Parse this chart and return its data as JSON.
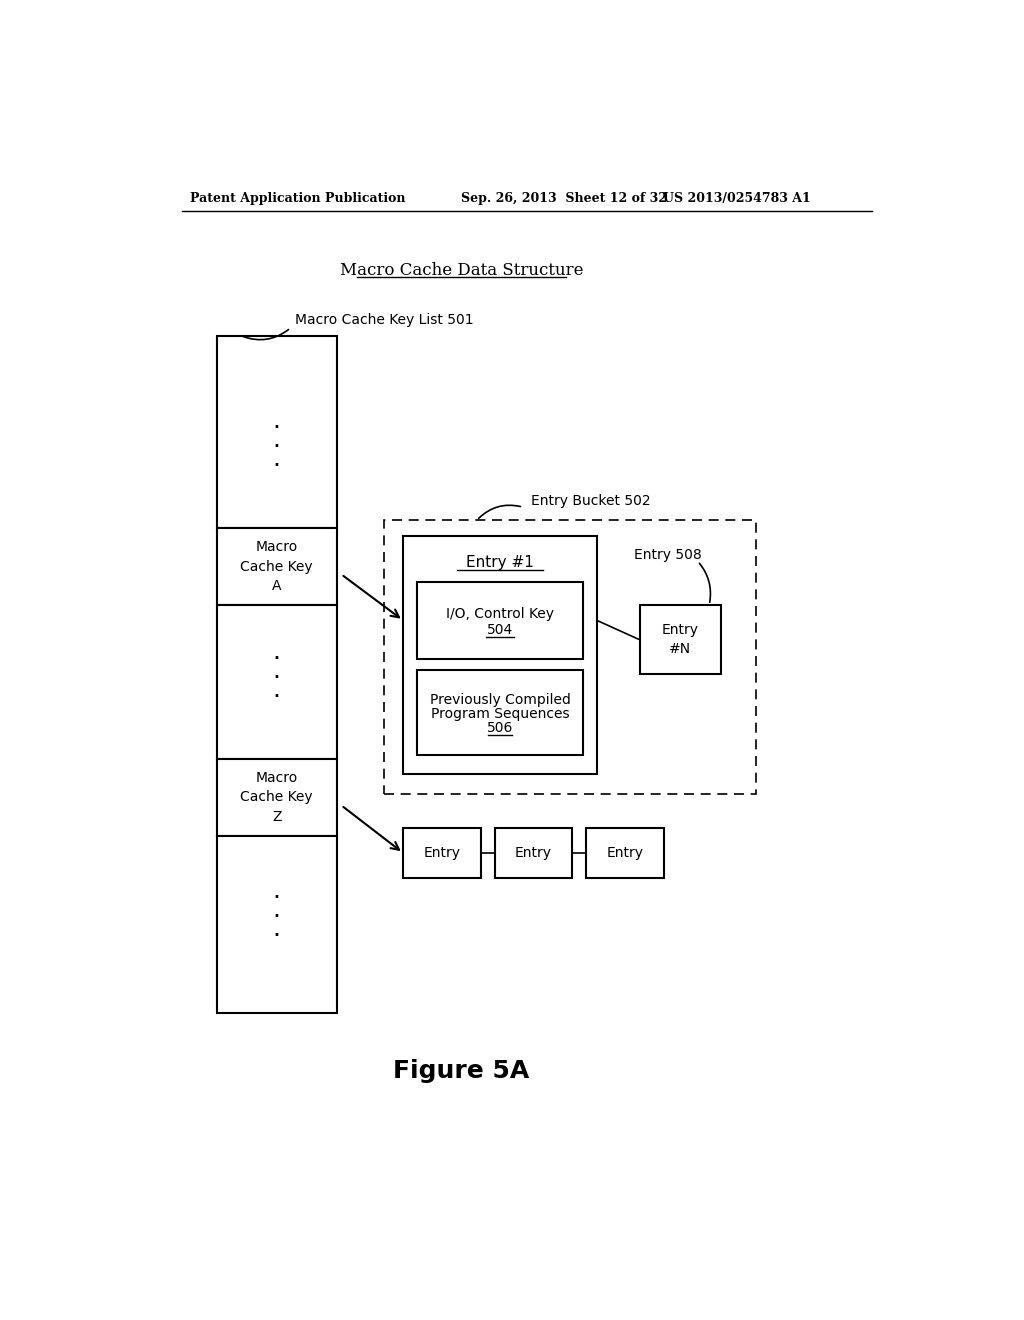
{
  "title": "Macro Cache Data Structure",
  "header_left": "Patent Application Publication",
  "header_mid": "Sep. 26, 2013  Sheet 12 of 32",
  "header_right": "US 2013/0254783 A1",
  "figure_label": "Figure 5A",
  "bg_color": "#ffffff",
  "text_color": "#000000",
  "key_list_label": "Macro Cache Key List 501",
  "entry_bucket_label": "Entry Bucket 502",
  "entry_508_label": "Entry 508",
  "key_a_label": "Macro\nCache Key\nA",
  "key_z_label": "Macro\nCache Key\nZ",
  "entry1_title": "Entry #1",
  "io_control_key_label": "I/O, Control Key\n504",
  "prog_seq_label": "Previously Compiled\nProgram Sequences\n506",
  "entry_n_label": "Entry\n#N",
  "entry_labels": [
    "Entry",
    "Entry",
    "Entry"
  ]
}
